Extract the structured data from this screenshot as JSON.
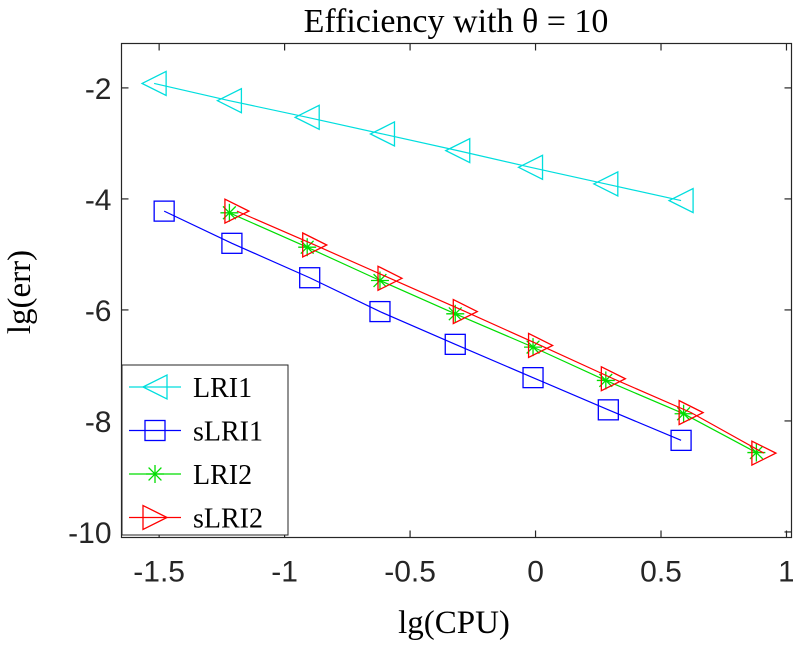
{
  "chart_data": {
    "type": "line",
    "title": "Efficiency with θ = 10",
    "xlabel": "lg(CPU)",
    "ylabel": "lg(err)",
    "xlim": [
      -1.65,
      1.02
    ],
    "ylim": [
      -10.1,
      -1.2
    ],
    "xticks": [
      -1.5,
      -1,
      -0.5,
      0,
      0.5,
      1
    ],
    "xtick_labels": [
      "-1.5",
      "-1",
      "-0.5",
      "0",
      "0.5",
      "1"
    ],
    "yticks": [
      -2,
      -4,
      -6,
      -8,
      -10
    ],
    "ytick_labels": [
      "-2",
      "-4",
      "-6",
      "-8",
      "-10"
    ],
    "grid": false,
    "legend_location": "bottom-left",
    "series": [
      {
        "name": "LRI1",
        "color": "#00dede",
        "marker": "triangle-left",
        "x": [
          -1.52,
          -1.22,
          -0.91,
          -0.61,
          -0.31,
          -0.02,
          0.28,
          0.58
        ],
        "y": [
          -1.92,
          -2.23,
          -2.53,
          -2.83,
          -3.13,
          -3.43,
          -3.73,
          -4.03
        ]
      },
      {
        "name": "sLRI1",
        "color": "#0000ff",
        "marker": "square",
        "x": [
          -1.48,
          -1.21,
          -0.9,
          -0.62,
          -0.32,
          -0.01,
          0.29,
          0.58
        ],
        "y": [
          -4.22,
          -4.8,
          -5.42,
          -6.03,
          -6.62,
          -7.22,
          -7.8,
          -8.35
        ]
      },
      {
        "name": "LRI2",
        "color": "#00dd00",
        "marker": "asterisk",
        "x": [
          -1.22,
          -0.91,
          -0.62,
          -0.32,
          -0.01,
          0.28,
          0.59,
          0.88
        ],
        "y": [
          -4.25,
          -4.87,
          -5.47,
          -6.07,
          -6.67,
          -7.27,
          -7.87,
          -8.57
        ]
      },
      {
        "name": "sLRI2",
        "color": "#ff0000",
        "marker": "triangle-right",
        "x": [
          -1.19,
          -0.88,
          -0.58,
          -0.28,
          0.02,
          0.31,
          0.62,
          0.91
        ],
        "y": [
          -4.22,
          -4.83,
          -5.43,
          -6.03,
          -6.64,
          -7.24,
          -7.85,
          -8.58
        ]
      }
    ]
  }
}
